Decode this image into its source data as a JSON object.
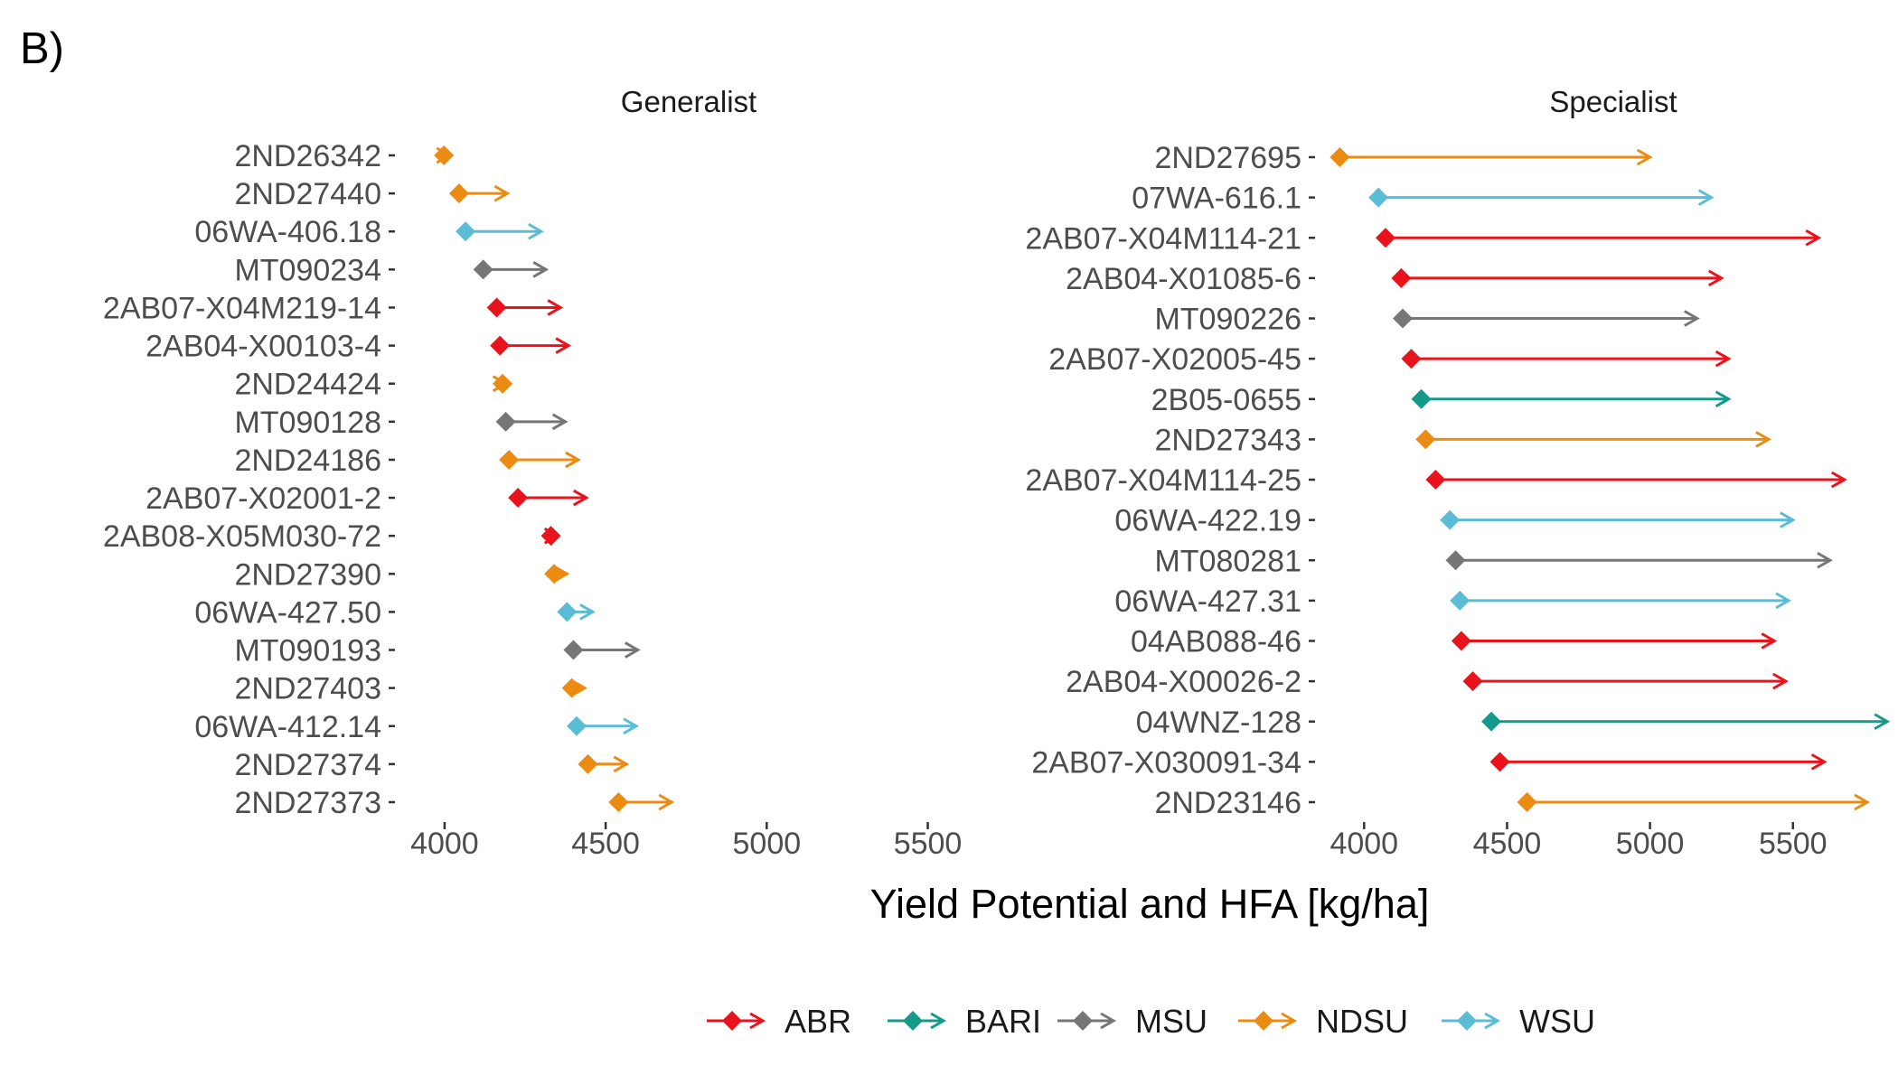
{
  "figure_label": "B)",
  "colors": {
    "ABR": "#e8131b",
    "BARI": "#14998a",
    "MSU": "#767676",
    "NDSU": "#ec8b12",
    "WSU": "#5bbcd6"
  },
  "chart_data": [
    {
      "type": "arrow-range",
      "title": "Generalist",
      "x_range": [
        3860,
        5650
      ],
      "x_ticks": [
        "4000",
        "4500",
        "5000",
        "5500"
      ],
      "lines": [
        {
          "line": "2ND26342",
          "program": "NDSU",
          "start": 3998,
          "end": 4015
        },
        {
          "line": "2ND27440",
          "program": "NDSU",
          "start": 4045,
          "end": 4195
        },
        {
          "line": "06WA-406.18",
          "program": "WSU",
          "start": 4065,
          "end": 4300
        },
        {
          "line": "MT090234",
          "program": "MSU",
          "start": 4120,
          "end": 4315
        },
        {
          "line": "2AB07-X04M219-14",
          "program": "ABR",
          "start": 4162,
          "end": 4360
        },
        {
          "line": "2AB04-X00103-4",
          "program": "ABR",
          "start": 4172,
          "end": 4385
        },
        {
          "line": "2ND24424",
          "program": "NDSU",
          "start": 4180,
          "end": 4190
        },
        {
          "line": "MT090128",
          "program": "MSU",
          "start": 4190,
          "end": 4375
        },
        {
          "line": "2ND24186",
          "program": "NDSU",
          "start": 4200,
          "end": 4415
        },
        {
          "line": "2AB07-X02001-2",
          "program": "ABR",
          "start": 4228,
          "end": 4440
        },
        {
          "line": "2AB08-X05M030-72",
          "program": "ABR",
          "start": 4330,
          "end": 4350
        },
        {
          "line": "2ND27390",
          "program": "NDSU",
          "start": 4340,
          "end": 4380
        },
        {
          "line": "06WA-427.50",
          "program": "WSU",
          "start": 4380,
          "end": 4460
        },
        {
          "line": "MT090193",
          "program": "MSU",
          "start": 4400,
          "end": 4600
        },
        {
          "line": "2ND27403",
          "program": "NDSU",
          "start": 4395,
          "end": 4435
        },
        {
          "line": "06WA-412.14",
          "program": "WSU",
          "start": 4410,
          "end": 4595
        },
        {
          "line": "2ND27374",
          "program": "NDSU",
          "start": 4445,
          "end": 4565
        },
        {
          "line": "2ND27373",
          "program": "NDSU",
          "start": 4540,
          "end": 4705
        }
      ]
    },
    {
      "type": "arrow-range",
      "title": "Specialist",
      "x_range": [
        3860,
        5820
      ],
      "x_ticks": [
        "4000",
        "4500",
        "5000",
        "5500"
      ],
      "lines": [
        {
          "line": "2ND27695",
          "program": "NDSU",
          "start": 3915,
          "end": 5000
        },
        {
          "line": "07WA-616.1",
          "program": "WSU",
          "start": 4050,
          "end": 5215
        },
        {
          "line": "2AB07-X04M114-21",
          "program": "ABR",
          "start": 4075,
          "end": 5590
        },
        {
          "line": "2AB04-X01085-6",
          "program": "ABR",
          "start": 4130,
          "end": 5250
        },
        {
          "line": "MT090226",
          "program": "MSU",
          "start": 4135,
          "end": 5165
        },
        {
          "line": "2AB07-X02005-45",
          "program": "ABR",
          "start": 4165,
          "end": 5275
        },
        {
          "line": "2B05-0655",
          "program": "BARI",
          "start": 4200,
          "end": 5275
        },
        {
          "line": "2ND27343",
          "program": "NDSU",
          "start": 4215,
          "end": 5415
        },
        {
          "line": "2AB07-X04M114-25",
          "program": "ABR",
          "start": 4250,
          "end": 5680
        },
        {
          "line": "06WA-422.19",
          "program": "WSU",
          "start": 4300,
          "end": 5500
        },
        {
          "line": "MT080281",
          "program": "MSU",
          "start": 4320,
          "end": 5630
        },
        {
          "line": "06WA-427.31",
          "program": "WSU",
          "start": 4335,
          "end": 5485
        },
        {
          "line": "04AB088-46",
          "program": "ABR",
          "start": 4340,
          "end": 5435
        },
        {
          "line": "2AB04-X00026-2",
          "program": "ABR",
          "start": 4380,
          "end": 5475
        },
        {
          "line": "04WNZ-128",
          "program": "BARI",
          "start": 4445,
          "end": 5830
        },
        {
          "line": "2AB07-X030091-34",
          "program": "ABR",
          "start": 4475,
          "end": 5610
        },
        {
          "line": "2ND23146",
          "program": "NDSU",
          "start": 4570,
          "end": 5760
        }
      ]
    }
  ],
  "xlabel": "Yield Potential and HFA [kg/ha]",
  "legend": {
    "placement": "bottom",
    "items": [
      "ABR",
      "BARI",
      "MSU",
      "NDSU",
      "WSU"
    ]
  }
}
